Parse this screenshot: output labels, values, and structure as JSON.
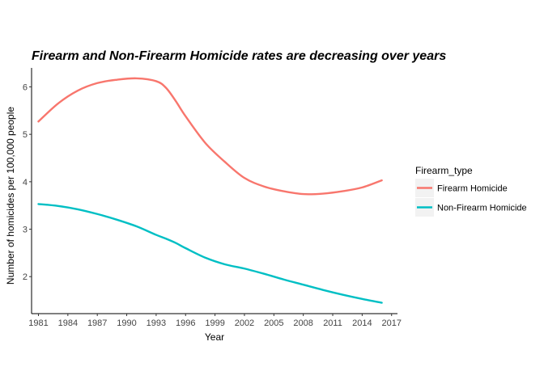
{
  "chart_data": {
    "type": "line",
    "title": "Firearm and Non-Firearm Homicide rates are decreasing over years",
    "xlabel": "Year",
    "ylabel": "Number of homicides per 100,000 people",
    "xlim": [
      1980.3,
      2017.6
    ],
    "ylim": [
      1.22,
      6.4
    ],
    "x_ticks": [
      1981,
      1984,
      1987,
      1990,
      1993,
      1996,
      1999,
      2002,
      2005,
      2008,
      2011,
      2014,
      2017
    ],
    "y_ticks": [
      2,
      3,
      4,
      5,
      6
    ],
    "grid": false,
    "legend": {
      "title": "Firearm_type",
      "position": "right"
    },
    "x": [
      1981,
      1983,
      1985,
      1987,
      1989,
      1991,
      1993,
      1994,
      1995,
      1996,
      1998,
      2000,
      2002,
      2004,
      2006,
      2008,
      2010,
      2012,
      2014,
      2016
    ],
    "series": [
      {
        "name": "Firearm Homicide",
        "color": "#F8766D",
        "values": [
          5.27,
          5.65,
          5.92,
          6.08,
          6.15,
          6.18,
          6.12,
          5.98,
          5.7,
          5.38,
          4.82,
          4.42,
          4.08,
          3.9,
          3.8,
          3.74,
          3.75,
          3.8,
          3.88,
          4.03
        ]
      },
      {
        "name": "Non-Firearm Homicide",
        "color": "#00BFC4",
        "values": [
          3.53,
          3.49,
          3.42,
          3.32,
          3.2,
          3.06,
          2.88,
          2.8,
          2.71,
          2.6,
          2.4,
          2.26,
          2.17,
          2.06,
          1.94,
          1.83,
          1.72,
          1.62,
          1.53,
          1.45
        ]
      }
    ]
  }
}
